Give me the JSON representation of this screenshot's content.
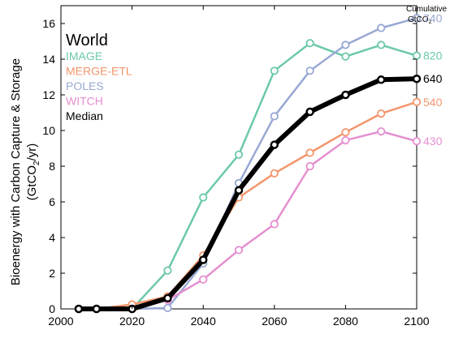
{
  "chart_data": {
    "type": "line",
    "title": "World",
    "ylabel_line1": "Bioenergy with Carbon Capture & Storage",
    "ylabel_line2": "(GtCO",
    "ylabel_sub": "2",
    "ylabel_end": "/yr)",
    "xlim": [
      2000,
      2100
    ],
    "ylim": [
      0,
      17
    ],
    "xticks": [
      2000,
      2020,
      2040,
      2060,
      2080,
      2100
    ],
    "yticks": [
      0,
      2,
      4,
      6,
      8,
      10,
      12,
      14,
      16
    ],
    "grid": false,
    "legend_position": "top-left",
    "cumulative_header_line1": "Cumulative",
    "cumulative_header_line2": "GtCO",
    "cumulative_header_sub": "2",
    "series": [
      {
        "name": "IMAGE",
        "color": "#6cc9a8",
        "cumulative": "820",
        "points": [
          [
            2005,
            0.0
          ],
          [
            2010,
            0.0
          ],
          [
            2020,
            0.0
          ],
          [
            2030,
            2.15
          ],
          [
            2040,
            6.25
          ],
          [
            2050,
            8.65
          ],
          [
            2060,
            13.35
          ],
          [
            2070,
            14.9
          ],
          [
            2080,
            14.15
          ],
          [
            2090,
            14.8
          ],
          [
            2100,
            14.2
          ]
        ]
      },
      {
        "name": "MERGE-ETL",
        "color": "#f3966c",
        "cumulative": "540",
        "points": [
          [
            2005,
            0.0
          ],
          [
            2010,
            0.0
          ],
          [
            2020,
            0.25
          ],
          [
            2030,
            0.7
          ],
          [
            2040,
            3.0
          ],
          [
            2050,
            6.25
          ],
          [
            2060,
            7.6
          ],
          [
            2070,
            8.75
          ],
          [
            2080,
            9.9
          ],
          [
            2090,
            10.95
          ],
          [
            2100,
            11.6
          ]
        ]
      },
      {
        "name": "POLES",
        "color": "#99a8d3",
        "cumulative": "740",
        "points": [
          [
            2005,
            0.0
          ],
          [
            2010,
            0.0
          ],
          [
            2020,
            0.0
          ],
          [
            2030,
            0.05
          ],
          [
            2040,
            2.55
          ],
          [
            2050,
            7.05
          ],
          [
            2060,
            10.8
          ],
          [
            2070,
            13.35
          ],
          [
            2080,
            14.8
          ],
          [
            2090,
            15.75
          ],
          [
            2100,
            16.3
          ]
        ]
      },
      {
        "name": "WITCH",
        "color": "#e58fd0",
        "cumulative": "430",
        "points": [
          [
            2005,
            0.0
          ],
          [
            2010,
            0.0
          ],
          [
            2020,
            0.0
          ],
          [
            2030,
            0.5
          ],
          [
            2040,
            1.65
          ],
          [
            2050,
            3.3
          ],
          [
            2060,
            4.75
          ],
          [
            2070,
            8.0
          ],
          [
            2080,
            9.45
          ],
          [
            2090,
            9.95
          ],
          [
            2100,
            9.4
          ]
        ]
      },
      {
        "name": "Median",
        "color": "#000000",
        "cumulative": "640",
        "points": [
          [
            2005,
            0.0
          ],
          [
            2010,
            0.0
          ],
          [
            2020,
            0.0
          ],
          [
            2030,
            0.6
          ],
          [
            2040,
            2.75
          ],
          [
            2050,
            6.65
          ],
          [
            2060,
            9.2
          ],
          [
            2070,
            11.05
          ],
          [
            2080,
            12.0
          ],
          [
            2090,
            12.85
          ],
          [
            2100,
            12.9
          ]
        ]
      }
    ]
  }
}
